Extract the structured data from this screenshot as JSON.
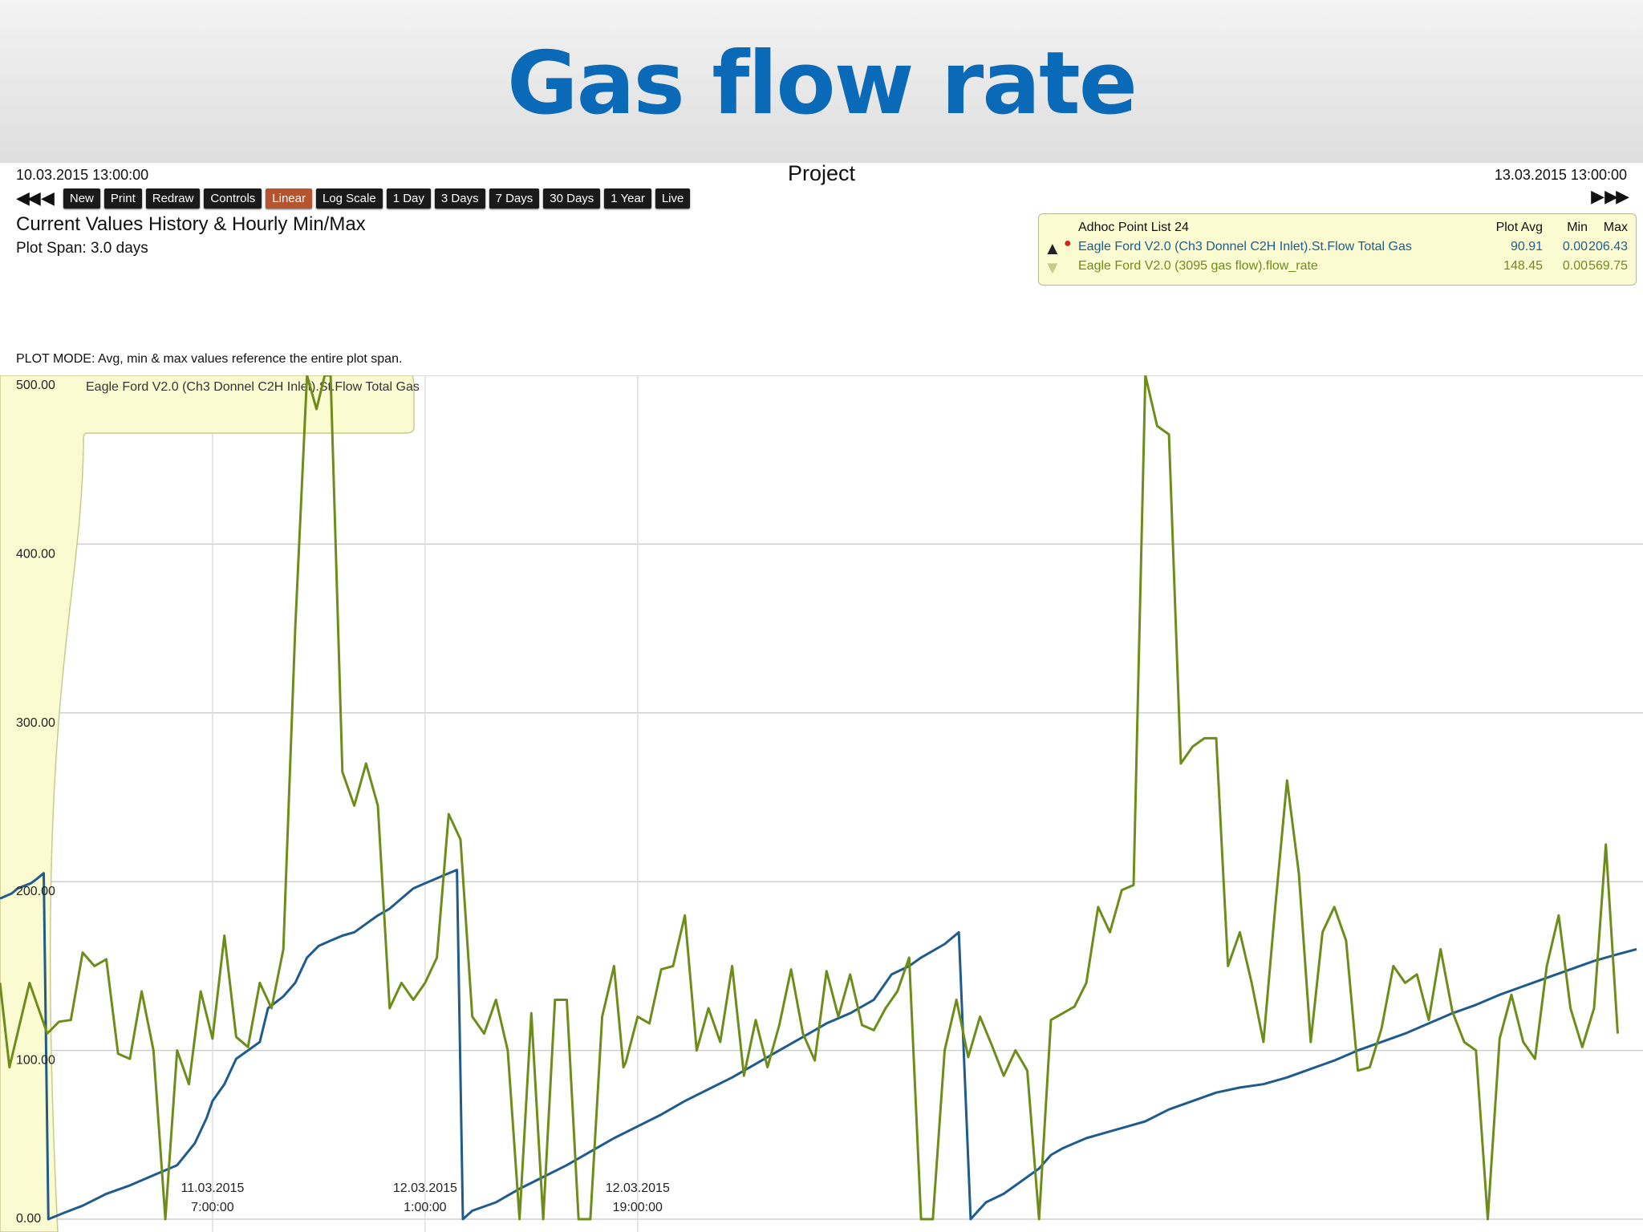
{
  "slide": {
    "title": "Gas flow rate"
  },
  "header": {
    "start_date": "10.03.2015 13:00:00",
    "end_date": "13.03.2015 13:00:00",
    "project": "Project",
    "nav_left": "◀◀ ◀",
    "nav_right": "▶ ▶▶"
  },
  "toolbar": {
    "buttons": [
      "New",
      "Print",
      "Redraw",
      "Controls",
      "Linear",
      "Log Scale",
      "1 Day",
      "3 Days",
      "7 Days",
      "30 Days",
      "1 Year",
      "Live"
    ],
    "active": "Linear"
  },
  "plot": {
    "subtitle": "Current Values History & Hourly Min/Max",
    "span": "Plot Span: 3.0 days",
    "mode": "PLOT MODE: Avg, min & max values reference the entire plot span."
  },
  "legend": {
    "list_name": "Adhoc Point List 24",
    "col_avg": "Plot Avg",
    "col_min": "Min",
    "col_max": "Max",
    "rows": [
      {
        "name": "Eagle Ford V2.0 (Ch3 Donnel C2H Inlet).St.Flow Total Gas",
        "avg": "90.91",
        "min": "0.00",
        "max": "206.43",
        "color": "#1f5b8b"
      },
      {
        "name": "Eagle Ford V2.0 (3095 gas flow).flow_rate",
        "avg": "148.45",
        "min": "0.00",
        "max": "569.75",
        "color": "#6e8c1a"
      }
    ]
  },
  "chart_data": {
    "type": "line",
    "x_range": [
      "10.03.2015 13:00:00",
      "13.03.2015 13:00:00"
    ],
    "ylim": [
      0,
      500
    ],
    "y_ticks": [
      "0.00",
      "100.00",
      "200.00",
      "300.00",
      "400.00",
      "500.00"
    ],
    "x_ticks": [
      {
        "x": 18,
        "date": "11.03.2015",
        "time": "7:00:00"
      },
      {
        "x": 36,
        "date": "12.03.2015",
        "time": "1:00:00"
      },
      {
        "x": 54,
        "date": "12.03.2015",
        "time": "19:00:00"
      }
    ],
    "highlight_label": "Eagle Ford V2.0 (Ch3 Donnel C2H Inlet).St.Flow Total Gas",
    "grid": true,
    "series": [
      {
        "name": "Eagle Ford V2.0 (Ch3 Donnel C2H Inlet).St.Flow Total Gas",
        "color": "#1f5b8b",
        "points": [
          [
            0,
            190
          ],
          [
            1,
            193
          ],
          [
            1.5,
            196
          ],
          [
            2.6,
            199
          ],
          [
            3.0,
            201
          ],
          [
            3.7,
            205
          ],
          [
            4.1,
            0
          ],
          [
            5.5,
            4
          ],
          [
            7,
            8
          ],
          [
            9,
            15
          ],
          [
            11,
            20
          ],
          [
            13,
            26
          ],
          [
            15,
            32
          ],
          [
            16.5,
            45
          ],
          [
            17.5,
            60
          ],
          [
            18,
            70
          ],
          [
            19,
            80
          ],
          [
            20,
            95
          ],
          [
            21,
            100
          ],
          [
            22,
            105
          ],
          [
            22.7,
            125
          ],
          [
            24,
            132
          ],
          [
            25,
            140
          ],
          [
            26,
            155
          ],
          [
            27,
            162
          ],
          [
            28,
            165
          ],
          [
            29,
            168
          ],
          [
            30,
            170
          ],
          [
            31,
            175
          ],
          [
            32,
            180
          ],
          [
            33,
            184
          ],
          [
            34,
            190
          ],
          [
            35,
            196
          ],
          [
            36,
            199
          ],
          [
            37,
            202
          ],
          [
            38,
            205
          ],
          [
            38.7,
            207
          ],
          [
            39.2,
            0
          ],
          [
            40,
            5
          ],
          [
            42,
            10
          ],
          [
            44,
            18
          ],
          [
            46,
            25
          ],
          [
            48,
            32
          ],
          [
            50,
            40
          ],
          [
            52,
            48
          ],
          [
            54,
            55
          ],
          [
            56,
            62
          ],
          [
            58,
            70
          ],
          [
            60,
            77
          ],
          [
            62,
            84
          ],
          [
            64,
            92
          ],
          [
            66,
            100
          ],
          [
            68,
            108
          ],
          [
            70,
            116
          ],
          [
            72,
            122
          ],
          [
            74,
            130
          ],
          [
            75.5,
            145
          ],
          [
            77,
            150
          ],
          [
            78,
            155
          ],
          [
            80,
            163
          ],
          [
            81.2,
            170
          ],
          [
            82.2,
            0
          ],
          [
            83.5,
            10
          ],
          [
            85,
            15
          ],
          [
            86,
            20
          ],
          [
            88,
            30
          ],
          [
            89,
            38
          ],
          [
            90,
            42
          ],
          [
            91,
            45
          ],
          [
            92,
            48
          ],
          [
            93,
            50
          ],
          [
            95,
            54
          ],
          [
            97,
            58
          ],
          [
            99,
            65
          ],
          [
            101,
            70
          ],
          [
            103,
            75
          ],
          [
            105,
            78
          ],
          [
            107,
            80
          ],
          [
            109,
            84
          ],
          [
            111,
            89
          ],
          [
            113,
            94
          ],
          [
            115,
            100
          ],
          [
            117,
            105
          ],
          [
            119,
            110
          ],
          [
            121,
            116
          ],
          [
            123,
            122
          ],
          [
            125,
            127
          ],
          [
            127,
            133
          ],
          [
            129,
            138
          ],
          [
            131,
            143
          ],
          [
            133,
            148
          ],
          [
            135,
            153
          ],
          [
            137,
            157
          ],
          [
            138.6,
            160
          ]
        ]
      },
      {
        "name": "Eagle Ford V2.0 (3095 gas flow).flow_rate",
        "color": "#6e8c1a",
        "points": [
          [
            0,
            140
          ],
          [
            0.8,
            90
          ],
          [
            2.5,
            140
          ],
          [
            4,
            110
          ],
          [
            5,
            117
          ],
          [
            6,
            118
          ],
          [
            7,
            158
          ],
          [
            8,
            150
          ],
          [
            9,
            154
          ],
          [
            10,
            98
          ],
          [
            11,
            95
          ],
          [
            12,
            135
          ],
          [
            13,
            100
          ],
          [
            14,
            0
          ],
          [
            15,
            100
          ],
          [
            16,
            80
          ],
          [
            17,
            135
          ],
          [
            18,
            107
          ],
          [
            19,
            168
          ],
          [
            20,
            108
          ],
          [
            21,
            102
          ],
          [
            22,
            140
          ],
          [
            23,
            125
          ],
          [
            24,
            160
          ],
          [
            25,
            350
          ],
          [
            26,
            500
          ],
          [
            26.8,
            480
          ],
          [
            27.5,
            500
          ],
          [
            28,
            500
          ],
          [
            29,
            265
          ],
          [
            30,
            245
          ],
          [
            31,
            270
          ],
          [
            32,
            245
          ],
          [
            33,
            125
          ],
          [
            34,
            140
          ],
          [
            35,
            130
          ],
          [
            36,
            140
          ],
          [
            37,
            155
          ],
          [
            38,
            240
          ],
          [
            39,
            225
          ],
          [
            40,
            120
          ],
          [
            41,
            110
          ],
          [
            42,
            130
          ],
          [
            43,
            100
          ],
          [
            44,
            0
          ],
          [
            45,
            122
          ],
          [
            46,
            0
          ],
          [
            47,
            130
          ],
          [
            48,
            130
          ],
          [
            49,
            0
          ],
          [
            50,
            0
          ],
          [
            51,
            120
          ],
          [
            52,
            150
          ],
          [
            52.8,
            90
          ],
          [
            53,
            93
          ],
          [
            54,
            120
          ],
          [
            55,
            116
          ],
          [
            56,
            148
          ],
          [
            57,
            150
          ],
          [
            58,
            180
          ],
          [
            59,
            100
          ],
          [
            60,
            125
          ],
          [
            61,
            105
          ],
          [
            62,
            150
          ],
          [
            63,
            85
          ],
          [
            64,
            118
          ],
          [
            65,
            90
          ],
          [
            66,
            115
          ],
          [
            67,
            148
          ],
          [
            68,
            110
          ],
          [
            69,
            94
          ],
          [
            70,
            147
          ],
          [
            71,
            120
          ],
          [
            72,
            145
          ],
          [
            73,
            115
          ],
          [
            74,
            112
          ],
          [
            75,
            125
          ],
          [
            76,
            135
          ],
          [
            77,
            155
          ],
          [
            78,
            0
          ],
          [
            79,
            0
          ],
          [
            80,
            100
          ],
          [
            81,
            130
          ],
          [
            82,
            96
          ],
          [
            83,
            120
          ],
          [
            84,
            103
          ],
          [
            85,
            85
          ],
          [
            86,
            100
          ],
          [
            87,
            88
          ],
          [
            88,
            0
          ],
          [
            89,
            118
          ],
          [
            90,
            122
          ],
          [
            91,
            126
          ],
          [
            92,
            140
          ],
          [
            93,
            185
          ],
          [
            94,
            170
          ],
          [
            95,
            195
          ],
          [
            96,
            198
          ],
          [
            97,
            500
          ],
          [
            98,
            470
          ],
          [
            99,
            465
          ],
          [
            100,
            270
          ],
          [
            101,
            280
          ],
          [
            102,
            285
          ],
          [
            103,
            285
          ],
          [
            104,
            150
          ],
          [
            105,
            170
          ],
          [
            106,
            140
          ],
          [
            107,
            105
          ],
          [
            108,
            185
          ],
          [
            109,
            260
          ],
          [
            110,
            205
          ],
          [
            111,
            105
          ],
          [
            112,
            170
          ],
          [
            113,
            185
          ],
          [
            114,
            165
          ],
          [
            115,
            88
          ],
          [
            116,
            90
          ],
          [
            117,
            113
          ],
          [
            118,
            150
          ],
          [
            119,
            140
          ],
          [
            120,
            145
          ],
          [
            121,
            118
          ],
          [
            122,
            160
          ],
          [
            123,
            123
          ],
          [
            124,
            105
          ],
          [
            125,
            100
          ],
          [
            126,
            0
          ],
          [
            127,
            107
          ],
          [
            128,
            133
          ],
          [
            129,
            105
          ],
          [
            130,
            95
          ],
          [
            131,
            150
          ],
          [
            132,
            180
          ],
          [
            133,
            125
          ],
          [
            134,
            102
          ],
          [
            135,
            125
          ],
          [
            136,
            222
          ],
          [
            137,
            110
          ]
        ]
      }
    ]
  }
}
